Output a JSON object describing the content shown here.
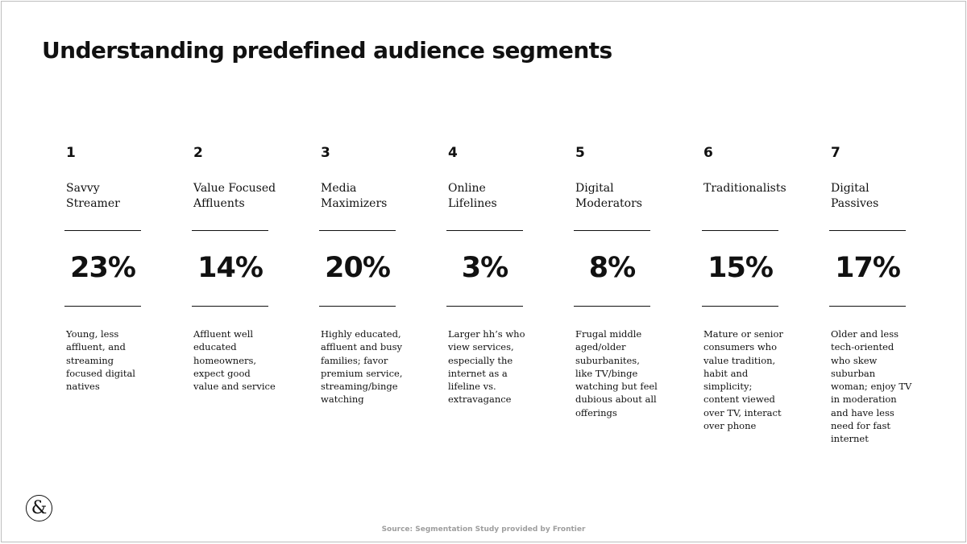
{
  "title": "Understanding predefined audience segments",
  "segments": [
    {
      "number": "1",
      "name": "Savvy\nStreamer",
      "share": "23%",
      "description": "Young, less\naffluent, and\nstreaming\nfocused digital\nnatives"
    },
    {
      "number": "2",
      "name": "Value Focused\nAffluents",
      "share": "14%",
      "description": "Affluent well\neducated\nhomeowners,\nexpect good\nvalue and service"
    },
    {
      "number": "3",
      "name": "Media\nMaximizers",
      "share": "20%",
      "description": "Highly educated,\naffluent and busy\nfamilies; favor\npremium service,\nstreaming/binge\nwatching"
    },
    {
      "number": "4",
      "name": "Online\nLifelines",
      "share": "3%",
      "description": "Larger hh’s who\nview services,\nespecially the\ninternet as a\nlifeline vs.\nextravagance"
    },
    {
      "number": "5",
      "name": "Digital\nModerators",
      "share": "8%",
      "description": "Frugal middle\naged/older\nsuburbanites,\nlike TV/binge\nwatching but feel\ndubious about all\nofferings"
    },
    {
      "number": "6",
      "name": "Traditionalists",
      "share": "15%",
      "description": "Mature or senior\nconsumers who\nvalue tradition,\nhabit and\nsimplicity;\ncontent viewed\nover TV, interact\nover phone"
    },
    {
      "number": "7",
      "name": "Digital\nPassives",
      "share": "17%",
      "description": "Older and less\ntech-oriented\nwho skew\nsuburban\nwoman; enjoy TV\nin moderation\nand have less\nneed for fast\ninternet"
    }
  ],
  "logo": {
    "glyph": "&",
    "icon": "ampersand-logo-icon"
  },
  "source": "Source: Segmentation Study provided by Frontier"
}
